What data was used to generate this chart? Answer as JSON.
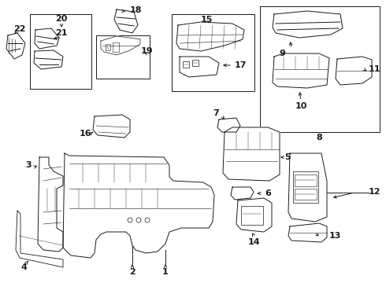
{
  "bg_color": "#ffffff",
  "line_color": "#1a1a1a",
  "lw": 0.7,
  "fig_width": 4.9,
  "fig_height": 3.6,
  "dpi": 100
}
